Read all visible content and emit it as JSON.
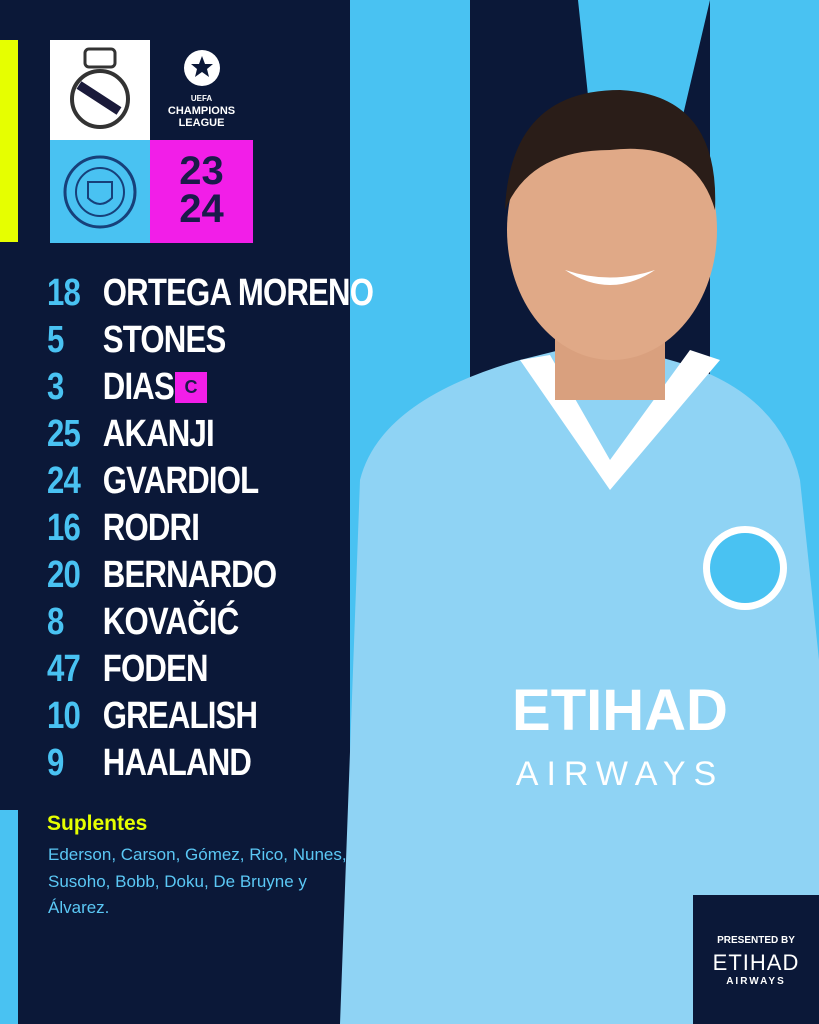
{
  "header": {
    "competition_line1": "UEFA",
    "competition_line2": "CHAMPIONS",
    "competition_line3": "LEAGUE",
    "season_top": "23",
    "season_bottom": "24",
    "home_crest": "real-madrid-crest",
    "away_crest": "manchester-city-crest"
  },
  "lineup": [
    {
      "number": "18",
      "name": "ORTEGA MORENO"
    },
    {
      "number": "5",
      "name": "STONES"
    },
    {
      "number": "3",
      "name": "DIAS",
      "captain": true
    },
    {
      "number": "25",
      "name": "AKANJI"
    },
    {
      "number": "24",
      "name": "GVARDIOL"
    },
    {
      "number": "16",
      "name": "RODRI"
    },
    {
      "number": "20",
      "name": "BERNARDO"
    },
    {
      "number": "8",
      "name": "KOVAČIĆ"
    },
    {
      "number": "47",
      "name": "FODEN"
    },
    {
      "number": "10",
      "name": "GREALISH"
    },
    {
      "number": "9",
      "name": "HAALAND"
    }
  ],
  "captain_badge": "C",
  "subs": {
    "title": "Suplentes",
    "list": "Ederson, Carson, Gómez, Rico, Nunes, Susoho, Bobb, Doku, De Bruyne y Álvarez."
  },
  "sponsor": {
    "presented_by": "PRESENTED BY",
    "brand": "ETIHAD",
    "brand_sub": "AIRWAYS",
    "shirt_text": "ETIHAD",
    "shirt_sub": "AIRWAYS"
  },
  "colors": {
    "navy": "#0b1838",
    "sky": "#49c2f2",
    "magenta": "#f21ee8",
    "yellow": "#e6ff00"
  }
}
